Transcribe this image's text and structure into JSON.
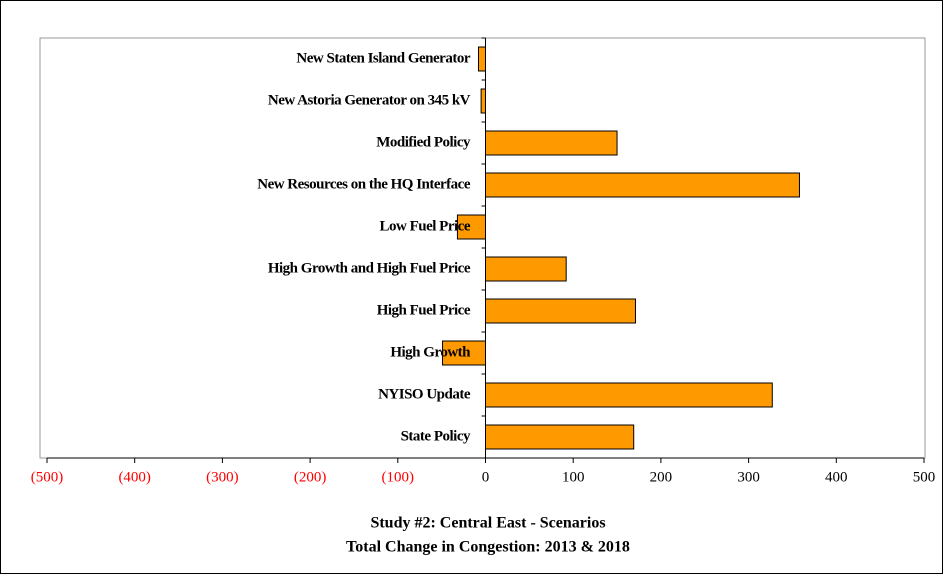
{
  "chart_data": {
    "type": "barh",
    "title": "Study #2: Central East - Scenarios",
    "subtitle": "Total Change in Congestion: 2013 & 2018",
    "categories": [
      "New Staten Island Generator",
      "New Astoria Generator on 345 kV",
      "Modified Policy",
      "New Resources on the HQ Interface",
      "Low Fuel Price",
      "High Growth and High Fuel Price",
      "High Fuel Price",
      "High Growth",
      "NYISO Update",
      "State Policy"
    ],
    "values": [
      -8,
      -5,
      150,
      358,
      -32,
      92,
      171,
      -49,
      327,
      169
    ],
    "color": "#ff9900",
    "xlim": [
      -500,
      500
    ],
    "xticks": [
      {
        "value": -500,
        "label": "(500)"
      },
      {
        "value": -400,
        "label": "(400)"
      },
      {
        "value": -300,
        "label": "(300)"
      },
      {
        "value": -200,
        "label": "(200)"
      },
      {
        "value": -100,
        "label": "(100)"
      },
      0,
      100,
      200,
      300,
      400,
      500
    ],
    "negative_tick_color": "#ff0000",
    "grid": false
  }
}
